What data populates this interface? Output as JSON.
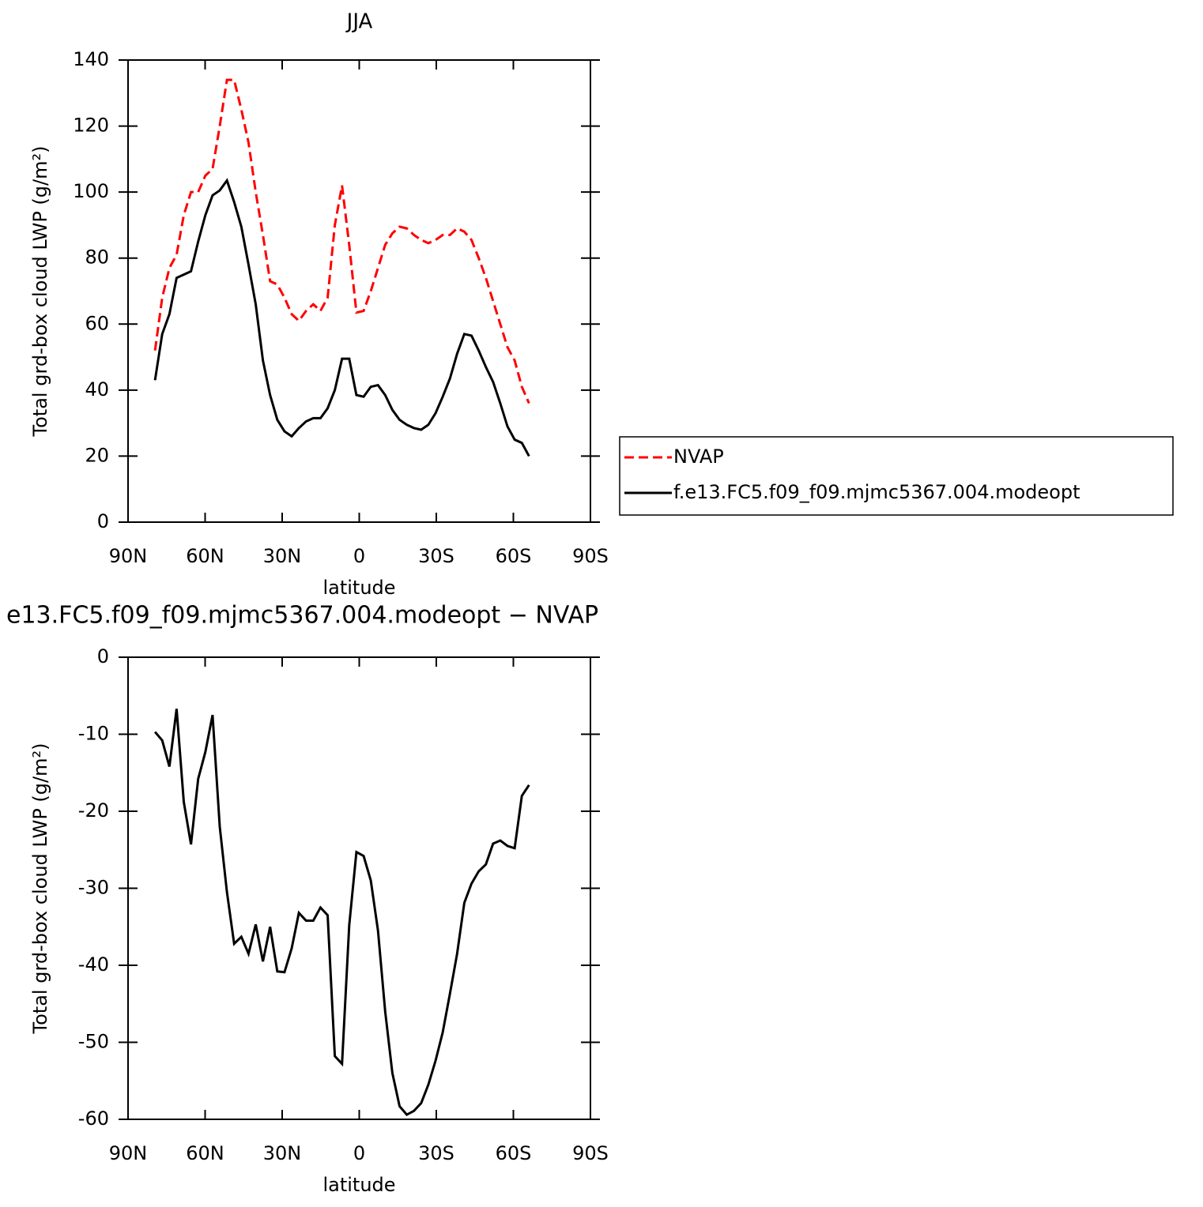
{
  "chart_data": [
    {
      "type": "line",
      "title": "JJA",
      "xlabel": "latitude",
      "ylabel": "Total grd-box cloud LWP (g/m²)",
      "x": [
        79.5,
        76.7,
        73.9,
        71.1,
        68.3,
        65.5,
        62.7,
        59.9,
        57.1,
        54.3,
        51.5,
        48.7,
        45.9,
        43.1,
        40.3,
        37.5,
        34.7,
        31.9,
        29.1,
        26.3,
        23.5,
        20.7,
        17.9,
        15.1,
        12.3,
        9.5,
        6.7,
        3.9,
        1.1,
        -1.7,
        -4.5,
        -7.3,
        -10.1,
        -12.9,
        -15.7,
        -18.5,
        -21.3,
        -24.1,
        -26.9,
        -29.7,
        -32.5,
        -35.3,
        -38.1,
        -40.9,
        -43.7,
        -46.5,
        -49.3,
        -52.1,
        -54.9,
        -57.7,
        -60.5,
        -63.3,
        -66.1
      ],
      "series": [
        {
          "name": "NVAP",
          "color": "#ff0000",
          "linestyle": "dashed",
          "values": [
            52,
            68,
            77,
            81,
            93,
            100,
            100,
            105,
            107,
            120,
            134,
            134,
            125,
            115,
            100,
            87,
            73,
            72,
            68,
            63,
            61,
            64,
            66,
            64,
            68,
            90,
            102,
            84,
            63.5,
            64,
            70,
            77,
            84,
            87.5,
            89.5,
            89,
            87,
            85.5,
            84.5,
            85.5,
            87,
            87,
            89,
            88,
            85.5,
            80,
            74,
            67,
            60,
            53,
            49,
            41,
            36
          ]
        },
        {
          "name": "f.e13.FC5.f09_f09.mjmc5367.004.modeopt",
          "color": "#000000",
          "linestyle": "solid",
          "values": [
            43,
            57,
            63,
            74,
            75,
            76,
            85,
            93,
            99,
            100.5,
            103.5,
            97,
            89.5,
            78,
            66,
            49,
            38.5,
            31,
            27.5,
            26,
            28.5,
            30.5,
            31.5,
            31.5,
            34.5,
            40,
            49.5,
            49.5,
            38.5,
            38,
            41,
            41.5,
            38.5,
            34,
            31,
            29.5,
            28.5,
            28,
            29.5,
            33,
            38,
            43.5,
            51,
            57,
            56.5,
            52,
            47,
            42.5,
            36,
            29,
            25,
            24,
            20
          ]
        }
      ],
      "xlim": [
        90,
        -90
      ],
      "xticks": [
        {
          "value": 90,
          "label": "90N"
        },
        {
          "value": 60,
          "label": "60N"
        },
        {
          "value": 30,
          "label": "30N"
        },
        0,
        {
          "value": -30,
          "label": "30S"
        },
        {
          "value": -60,
          "label": "60S"
        },
        {
          "value": -90,
          "label": "90S"
        }
      ],
      "ylim": [
        0,
        140
      ],
      "yticks": [
        0,
        20,
        40,
        60,
        80,
        100,
        120,
        140
      ],
      "legend": "right"
    },
    {
      "type": "line",
      "title": "e13.FC5.f09_f09.mjmc5367.004.modeopt − NVAP",
      "xlabel": "latitude",
      "ylabel": "Total grd-box cloud LWP (g/m²)",
      "x": [
        79.5,
        76.7,
        73.9,
        71.1,
        68.3,
        65.5,
        62.7,
        59.9,
        57.1,
        54.3,
        51.5,
        48.7,
        45.9,
        43.1,
        40.3,
        37.5,
        34.7,
        31.9,
        29.1,
        26.3,
        23.5,
        20.7,
        17.9,
        15.1,
        12.3,
        9.5,
        6.7,
        3.9,
        1.1,
        -1.7,
        -4.5,
        -7.3,
        -10.1,
        -12.9,
        -15.7,
        -18.5,
        -21.3,
        -24.1,
        -26.9,
        -29.7,
        -32.5,
        -35.3,
        -38.1,
        -40.9,
        -43.7,
        -46.5,
        -49.3,
        -52.1,
        -54.9,
        -57.7,
        -60.5,
        -63.3,
        -66.1
      ],
      "series": [
        {
          "color": "#000000",
          "linestyle": "solid",
          "values": [
            -9.7,
            -10.8,
            -14.2,
            -6.7,
            -18.8,
            -24.3,
            -15.8,
            -12.3,
            -7.5,
            -22,
            -30.5,
            -37.2,
            -36.3,
            -38.5,
            -34.7,
            -39.5,
            -35,
            -40.8,
            -40.9,
            -37.8,
            -33.2,
            -34.2,
            -34.2,
            -32.5,
            -33.5,
            -51.8,
            -52.8,
            -34.8,
            -25.3,
            -25.8,
            -29,
            -35.5,
            -46,
            -54,
            -58.3,
            -59.4,
            -58.9,
            -57.9,
            -55.5,
            -52.4,
            -48.7,
            -43.7,
            -38.5,
            -31.9,
            -29.4,
            -27.8,
            -26.9,
            -24.2,
            -23.8,
            -24.5,
            -24.8,
            -18,
            -16.6
          ]
        }
      ],
      "xlim": [
        90,
        -90
      ],
      "xticks": [
        {
          "value": 90,
          "label": "90N"
        },
        {
          "value": 60,
          "label": "60N"
        },
        {
          "value": 30,
          "label": "30N"
        },
        0,
        {
          "value": -30,
          "label": "30S"
        },
        {
          "value": -60,
          "label": "60S"
        },
        {
          "value": -90,
          "label": "90S"
        }
      ],
      "ylim": [
        -60,
        0
      ],
      "yticks": [
        -60,
        -50,
        -40,
        -30,
        -20,
        -10,
        0
      ]
    }
  ]
}
